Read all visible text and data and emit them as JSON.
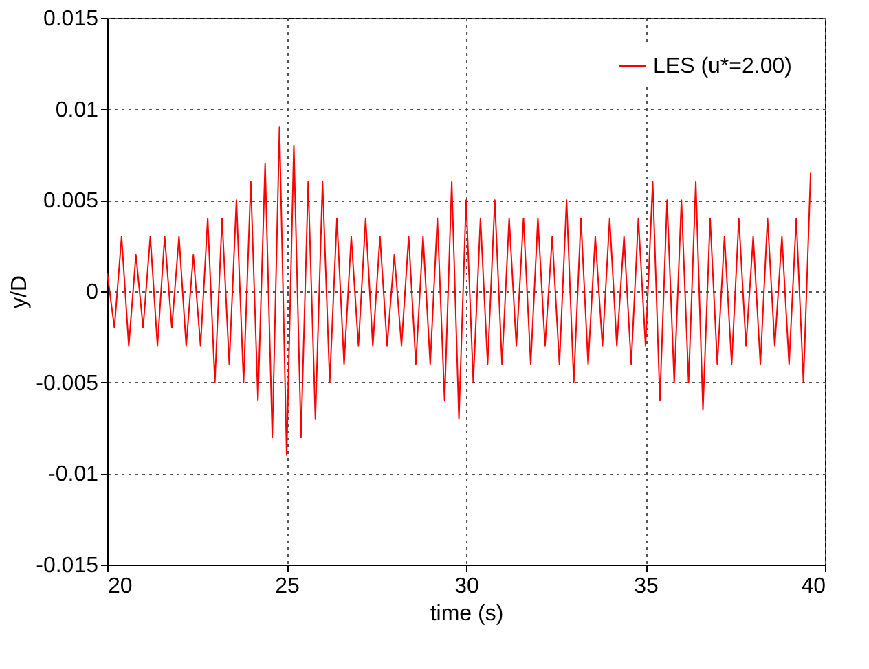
{
  "chart_data": {
    "type": "line",
    "xlabel": "time (s)",
    "ylabel": "y/D",
    "x": [
      20.0,
      20.2,
      20.4,
      20.6,
      20.8,
      21.0,
      21.2,
      21.4,
      21.6,
      21.8,
      22.0,
      22.2,
      22.4,
      22.6,
      22.8,
      23.0,
      23.2,
      23.4,
      23.6,
      23.8,
      24.0,
      24.2,
      24.4,
      24.6,
      24.8,
      25.0,
      25.2,
      25.4,
      25.6,
      25.8,
      26.0,
      26.2,
      26.4,
      26.6,
      26.8,
      27.0,
      27.2,
      27.4,
      27.6,
      27.8,
      28.0,
      28.2,
      28.4,
      28.6,
      28.8,
      29.0,
      29.2,
      29.4,
      29.6,
      29.8,
      30.0,
      30.2,
      30.4,
      30.6,
      30.8,
      31.0,
      31.2,
      31.4,
      31.6,
      31.8,
      32.0,
      32.2,
      32.4,
      32.6,
      32.8,
      33.0,
      33.2,
      33.4,
      33.6,
      33.8,
      34.0,
      34.2,
      34.4,
      34.6,
      34.8,
      35.0,
      35.2,
      35.4,
      35.6,
      35.8,
      36.0,
      36.2,
      36.4,
      36.6,
      36.8,
      37.0,
      37.2,
      37.4,
      37.6,
      37.8,
      38.0,
      38.2,
      38.4,
      38.6,
      38.8,
      39.0,
      39.2,
      39.4,
      39.6
    ],
    "series": [
      {
        "name": "LES (u*=2.00)",
        "color": "#ff0000",
        "values": [
          0.001,
          -0.002,
          0.003,
          -0.003,
          0.002,
          -0.002,
          0.003,
          -0.003,
          0.003,
          -0.002,
          0.003,
          -0.003,
          0.002,
          -0.003,
          0.004,
          -0.005,
          0.004,
          -0.004,
          0.005,
          -0.005,
          0.006,
          -0.006,
          0.007,
          -0.008,
          0.009,
          -0.009,
          0.008,
          -0.008,
          0.006,
          -0.007,
          0.006,
          -0.005,
          0.004,
          -0.004,
          0.003,
          -0.003,
          0.004,
          -0.003,
          0.003,
          -0.003,
          0.002,
          -0.003,
          0.003,
          -0.004,
          0.003,
          -0.004,
          0.004,
          -0.006,
          0.006,
          -0.007,
          0.005,
          -0.005,
          0.004,
          -0.004,
          0.005,
          -0.004,
          0.004,
          -0.003,
          0.004,
          -0.004,
          0.004,
          -0.003,
          0.003,
          -0.004,
          0.005,
          -0.005,
          0.004,
          -0.004,
          0.003,
          -0.003,
          0.004,
          -0.003,
          0.003,
          -0.004,
          0.004,
          -0.003,
          0.006,
          -0.006,
          0.005,
          -0.005,
          0.005,
          -0.005,
          0.006,
          -0.0065,
          0.004,
          -0.004,
          0.003,
          -0.004,
          0.004,
          -0.003,
          0.003,
          -0.004,
          0.004,
          -0.003,
          0.003,
          -0.004,
          0.004,
          -0.005,
          0.0065
        ]
      }
    ],
    "xlim": [
      20,
      40
    ],
    "ylim": [
      -0.015,
      0.015
    ],
    "xticks": [
      20,
      25,
      30,
      35,
      40
    ],
    "yticks": [
      -0.015,
      -0.01,
      -0.005,
      0,
      0.005,
      0.01,
      0.015
    ],
    "grid": true,
    "legend": "top right",
    "line_style": "solid"
  }
}
